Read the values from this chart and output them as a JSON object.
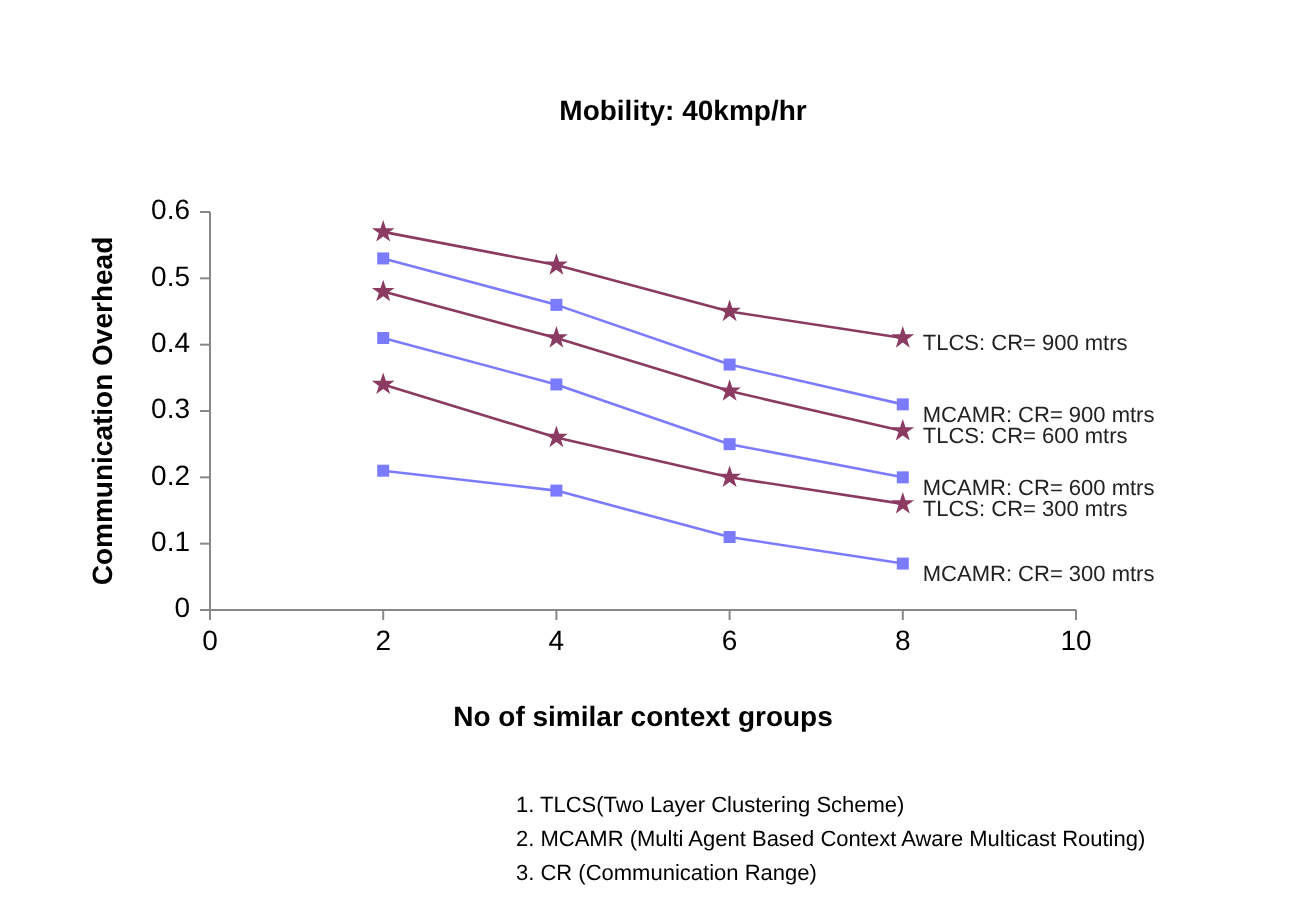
{
  "chart_data": {
    "type": "line",
    "title": "Mobility: 40kmp/hr",
    "xlabel": "No of similar context groups",
    "ylabel": "Communication Overhead",
    "x": [
      2,
      4,
      6,
      8
    ],
    "xlim": [
      0,
      10
    ],
    "xticks": [
      0,
      2,
      4,
      6,
      8,
      10
    ],
    "ylim": [
      0,
      0.6
    ],
    "yticks": [
      0,
      0.1,
      0.2,
      0.3,
      0.4,
      0.5,
      0.6
    ],
    "grid": false,
    "line_style": "solid",
    "series": [
      {
        "name": "TLCS: CR= 900 mtrs",
        "color": "#8b3a62",
        "marker": "star",
        "values": [
          0.57,
          0.52,
          0.45,
          0.41
        ]
      },
      {
        "name": "MCAMR: CR= 900 mtrs",
        "color": "#7b7bff",
        "marker": "square",
        "values": [
          0.53,
          0.46,
          0.37,
          0.31
        ]
      },
      {
        "name": "TLCS: CR= 600 mtrs",
        "color": "#8b3a62",
        "marker": "star",
        "values": [
          0.48,
          0.41,
          0.33,
          0.27
        ]
      },
      {
        "name": "MCAMR: CR= 600 mtrs",
        "color": "#7b7bff",
        "marker": "square",
        "values": [
          0.41,
          0.34,
          0.25,
          0.2
        ]
      },
      {
        "name": "TLCS: CR= 300 mtrs",
        "color": "#8b3a62",
        "marker": "star",
        "values": [
          0.34,
          0.26,
          0.2,
          0.16
        ]
      },
      {
        "name": "MCAMR: CR= 300 mtrs",
        "color": "#7b7bff",
        "marker": "square",
        "values": [
          0.21,
          0.18,
          0.11,
          0.07
        ]
      }
    ],
    "annotations": [
      "1. TLCS(Two Layer Clustering Scheme)",
      "2. MCAMR (Multi Agent Based Context Aware Multicast Routing)",
      "3. CR (Communication Range)"
    ]
  }
}
